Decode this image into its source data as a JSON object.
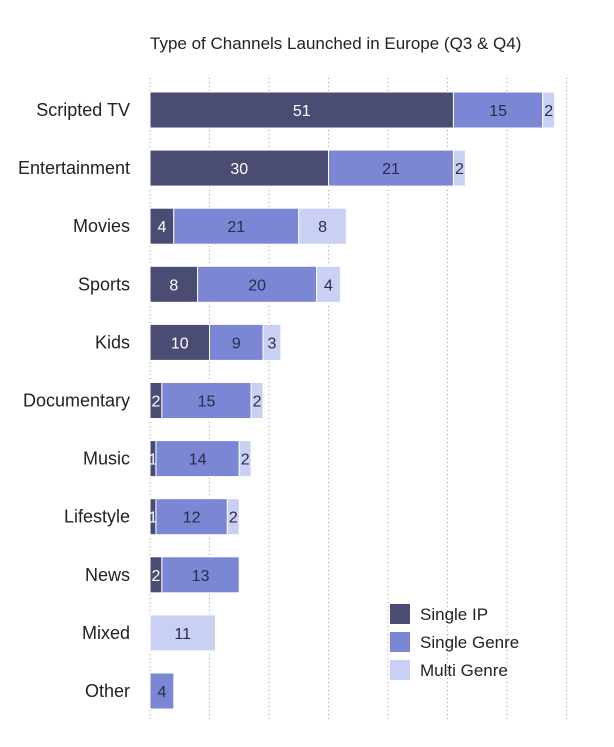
{
  "chart_data": {
    "type": "bar",
    "orientation": "horizontal",
    "stacked": true,
    "title": "Type of Channels Launched in Europe (Q3 & Q4)",
    "categories": [
      "Scripted TV",
      "Entertainment",
      "Movies",
      "Sports",
      "Kids",
      "Documentary",
      "Music",
      "Lifestyle",
      "News",
      "Mixed",
      "Other"
    ],
    "series": [
      {
        "name": "Single IP",
        "color": "#4a4c73",
        "label_color": "#ffffff",
        "values": [
          51,
          30,
          4,
          8,
          10,
          2,
          1,
          1,
          2,
          0,
          0
        ]
      },
      {
        "name": "Single Genre",
        "color": "#7b86d4",
        "label_color": "#2a2d4a",
        "values": [
          15,
          21,
          21,
          20,
          9,
          15,
          14,
          12,
          13,
          0,
          4
        ]
      },
      {
        "name": "Multi Genre",
        "color": "#c9d0f4",
        "label_color": "#2a2d4a",
        "values": [
          2,
          2,
          8,
          4,
          3,
          2,
          2,
          2,
          0,
          11,
          0
        ]
      }
    ],
    "xlim": [
      0,
      70
    ],
    "gridlines": "dotted vertical every 10",
    "legend_position": "bottom-right"
  }
}
